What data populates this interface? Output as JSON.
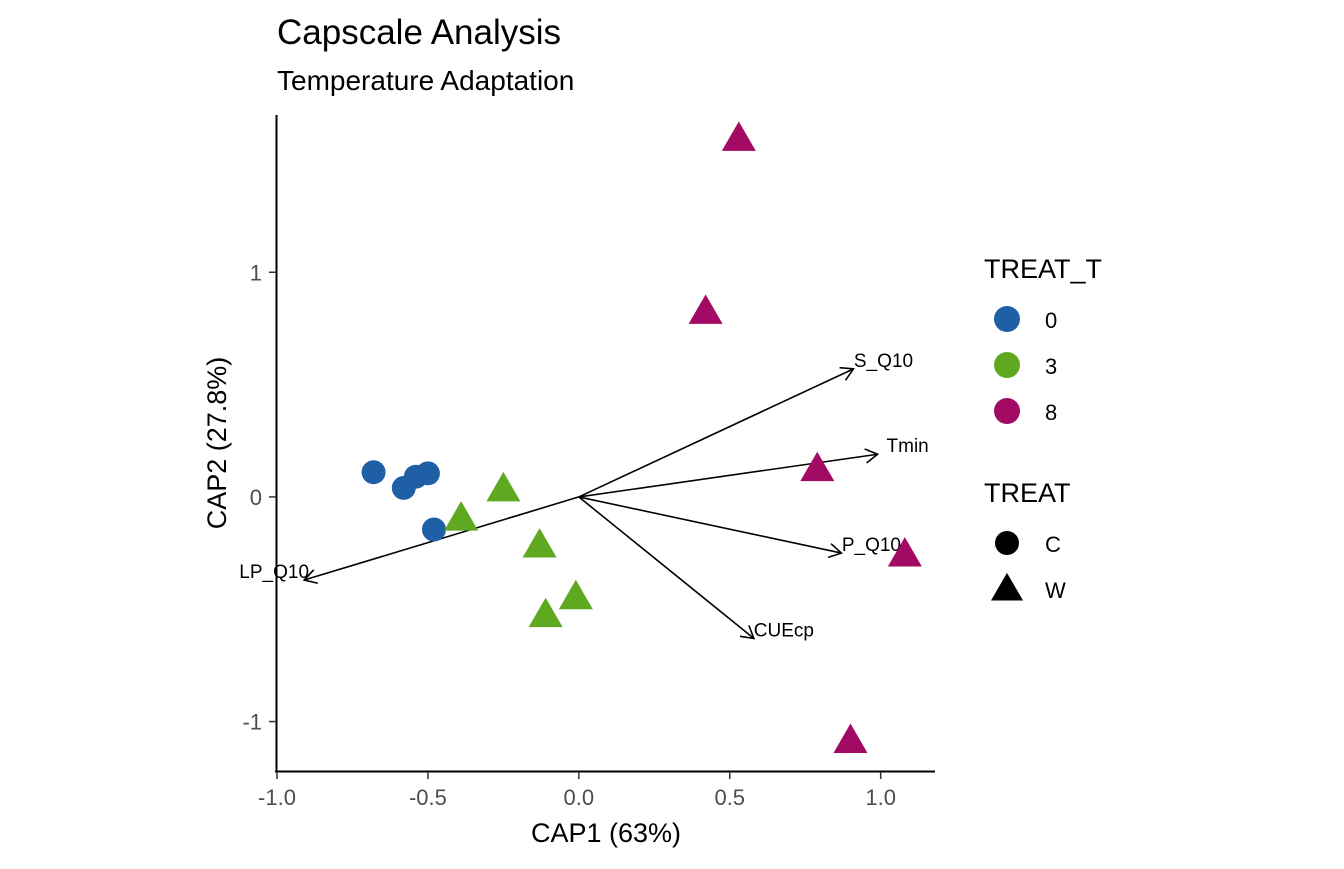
{
  "chart_data": {
    "type": "scatter",
    "title": "Capscale Analysis",
    "subtitle": "Temperature Adaptation",
    "xlabel": "CAP1 (63%)",
    "ylabel": "CAP2 (27.8%)",
    "xlim": [
      -1.0,
      1.18
    ],
    "ylim": [
      -1.22,
      1.7
    ],
    "xticks": [
      -1.0,
      -0.5,
      0.0,
      0.5,
      1.0
    ],
    "xtick_labels": [
      "-1.0",
      "-0.5",
      "0.0",
      "0.5",
      "1.0"
    ],
    "yticks": [
      -1,
      0,
      1
    ],
    "ytick_labels": [
      "-1",
      "0",
      "1"
    ],
    "grid": false,
    "legend_position": "right",
    "colors": {
      "0": "#1f5fa6",
      "3": "#5ea91f",
      "8": "#a30a63"
    },
    "legends": [
      {
        "title": "TREAT_T",
        "kind": "color",
        "items": [
          {
            "label": "0",
            "color": "#1f5fa6"
          },
          {
            "label": "3",
            "color": "#5ea91f"
          },
          {
            "label": "8",
            "color": "#a30a63"
          }
        ]
      },
      {
        "title": "TREAT",
        "kind": "shape",
        "items": [
          {
            "label": "C",
            "shape": "circle"
          },
          {
            "label": "W",
            "shape": "triangle"
          }
        ]
      }
    ],
    "points": [
      {
        "x": -0.68,
        "y": 0.11,
        "treat_t": "0",
        "treat": "C"
      },
      {
        "x": -0.58,
        "y": 0.04,
        "treat_t": "0",
        "treat": "C"
      },
      {
        "x": -0.54,
        "y": 0.09,
        "treat_t": "0",
        "treat": "C"
      },
      {
        "x": -0.5,
        "y": 0.105,
        "treat_t": "0",
        "treat": "C"
      },
      {
        "x": -0.48,
        "y": -0.145,
        "treat_t": "0",
        "treat": "C"
      },
      {
        "x": -0.25,
        "y": 0.03,
        "treat_t": "3",
        "treat": "W"
      },
      {
        "x": -0.39,
        "y": -0.1,
        "treat_t": "3",
        "treat": "W"
      },
      {
        "x": -0.13,
        "y": -0.22,
        "treat_t": "3",
        "treat": "W"
      },
      {
        "x": -0.01,
        "y": -0.45,
        "treat_t": "3",
        "treat": "W"
      },
      {
        "x": -0.11,
        "y": -0.53,
        "treat_t": "3",
        "treat": "W"
      },
      {
        "x": 0.53,
        "y": 1.59,
        "treat_t": "8",
        "treat": "W"
      },
      {
        "x": 0.42,
        "y": 0.82,
        "treat_t": "8",
        "treat": "W"
      },
      {
        "x": 0.79,
        "y": 0.12,
        "treat_t": "8",
        "treat": "W"
      },
      {
        "x": 1.08,
        "y": -0.26,
        "treat_t": "8",
        "treat": "W"
      },
      {
        "x": 0.9,
        "y": -1.09,
        "treat_t": "8",
        "treat": "W"
      }
    ],
    "vectors": [
      {
        "label": "S_Q10",
        "x": 0.91,
        "y": 0.57
      },
      {
        "label": "Tmin",
        "x": 0.99,
        "y": 0.19
      },
      {
        "label": "P_Q10",
        "x": 0.87,
        "y": -0.25
      },
      {
        "label": "CUEcp",
        "x": 0.58,
        "y": -0.63
      },
      {
        "label": "LP_Q10",
        "x": -0.91,
        "y": -0.37
      }
    ]
  }
}
